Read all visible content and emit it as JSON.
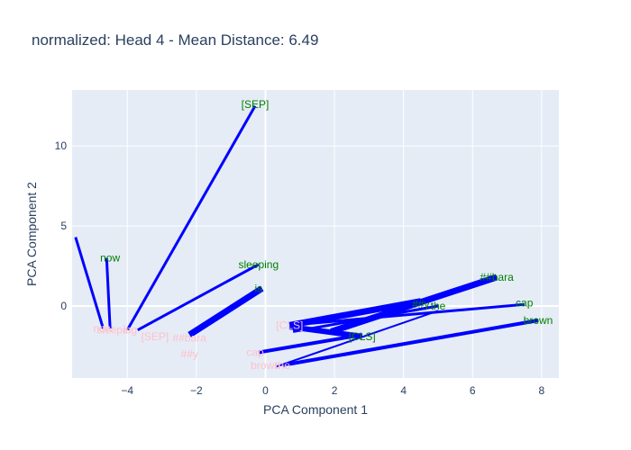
{
  "chart_data": {
    "type": "line",
    "title": "normalized: Head 4 - Mean Distance: 6.49",
    "xlabel": "PCA Component 1",
    "ylabel": "PCA Component 2",
    "xlim": [
      -5.6,
      8.5
    ],
    "ylim": [
      -4.5,
      13.5
    ],
    "x_ticks": [
      -4,
      -2,
      0,
      2,
      4,
      6,
      8
    ],
    "y_ticks": [
      0,
      5,
      10
    ],
    "grid": true,
    "colors": {
      "background": "#e5ecf6",
      "line": "#0000ff",
      "sentence_a": "#008000",
      "sentence_b": "#ffc0cb"
    },
    "sentence_a": [
      {
        "token": "[SEP]",
        "x": -0.3,
        "y": 12.6
      },
      {
        "token": "now",
        "x": -4.5,
        "y": 3.0
      },
      {
        "token": "sleeping",
        "x": -0.2,
        "y": 2.6
      },
      {
        "token": "is",
        "x": -0.2,
        "y": 1.1
      },
      {
        "token": "##bara",
        "x": 6.7,
        "y": 1.8
      },
      {
        "token": "##y",
        "x": 4.5,
        "y": 0.1
      },
      {
        "token": "the",
        "x": 5.0,
        "y": 0.0
      },
      {
        "token": "cap",
        "x": 7.5,
        "y": 0.2
      },
      {
        "token": "brown",
        "x": 7.9,
        "y": -0.9
      },
      {
        "token": "[CLS]",
        "x": 2.8,
        "y": -1.9
      }
    ],
    "sentence_b": [
      {
        "token": "now",
        "x": -4.7,
        "y": -1.4
      },
      {
        "token": "sleeping",
        "x": -4.3,
        "y": -1.5
      },
      {
        "token": "is",
        "x": -4.0,
        "y": -1.5
      },
      {
        "token": "[SEP]",
        "x": -3.2,
        "y": -1.9
      },
      {
        "token": "##bara",
        "x": -2.2,
        "y": -2.0
      },
      {
        "token": "##y",
        "x": -2.2,
        "y": -3.0
      },
      {
        "token": "[CLS]",
        "x": 0.7,
        "y": -1.2
      },
      {
        "token": "cap",
        "x": -0.3,
        "y": -2.9
      },
      {
        "token": "brown",
        "x": 0.0,
        "y": -3.7
      },
      {
        "token": "the",
        "x": 0.5,
        "y": -3.7
      }
    ],
    "segments": [
      {
        "from": [
          -5.5,
          4.3
        ],
        "to": [
          -4.7,
          -1.4
        ],
        "weight": 3
      },
      {
        "from": [
          -4.6,
          3.0
        ],
        "to": [
          -4.5,
          -1.4
        ],
        "weight": 3
      },
      {
        "from": [
          -0.3,
          12.5
        ],
        "to": [
          -4.0,
          -1.5
        ],
        "weight": 3
      },
      {
        "from": [
          -0.2,
          2.6
        ],
        "to": [
          -3.7,
          -1.5
        ],
        "weight": 3
      },
      {
        "from": [
          -0.1,
          1.1
        ],
        "to": [
          -2.2,
          -1.8
        ],
        "weight": 7
      },
      {
        "from": [
          6.7,
          1.8
        ],
        "to": [
          1.9,
          -1.6
        ],
        "weight": 7
      },
      {
        "from": [
          4.5,
          0.3
        ],
        "to": [
          0.7,
          -1.2
        ],
        "weight": 7
      },
      {
        "from": [
          5.0,
          0.0
        ],
        "to": [
          0.8,
          -1.6
        ],
        "weight": 3
      },
      {
        "from": [
          7.5,
          0.1
        ],
        "to": [
          0.7,
          -1.2
        ],
        "weight": 3
      },
      {
        "from": [
          7.9,
          -0.9
        ],
        "to": [
          0.5,
          -3.7
        ],
        "weight": 4
      },
      {
        "from": [
          2.8,
          -1.8
        ],
        "to": [
          -0.2,
          -2.9
        ],
        "weight": 4
      },
      {
        "from": [
          2.8,
          -1.9
        ],
        "to": [
          0.7,
          -1.3
        ],
        "weight": 6
      },
      {
        "from": [
          5.0,
          -0.3
        ],
        "to": [
          0.3,
          -3.8
        ],
        "weight": 2
      }
    ]
  }
}
